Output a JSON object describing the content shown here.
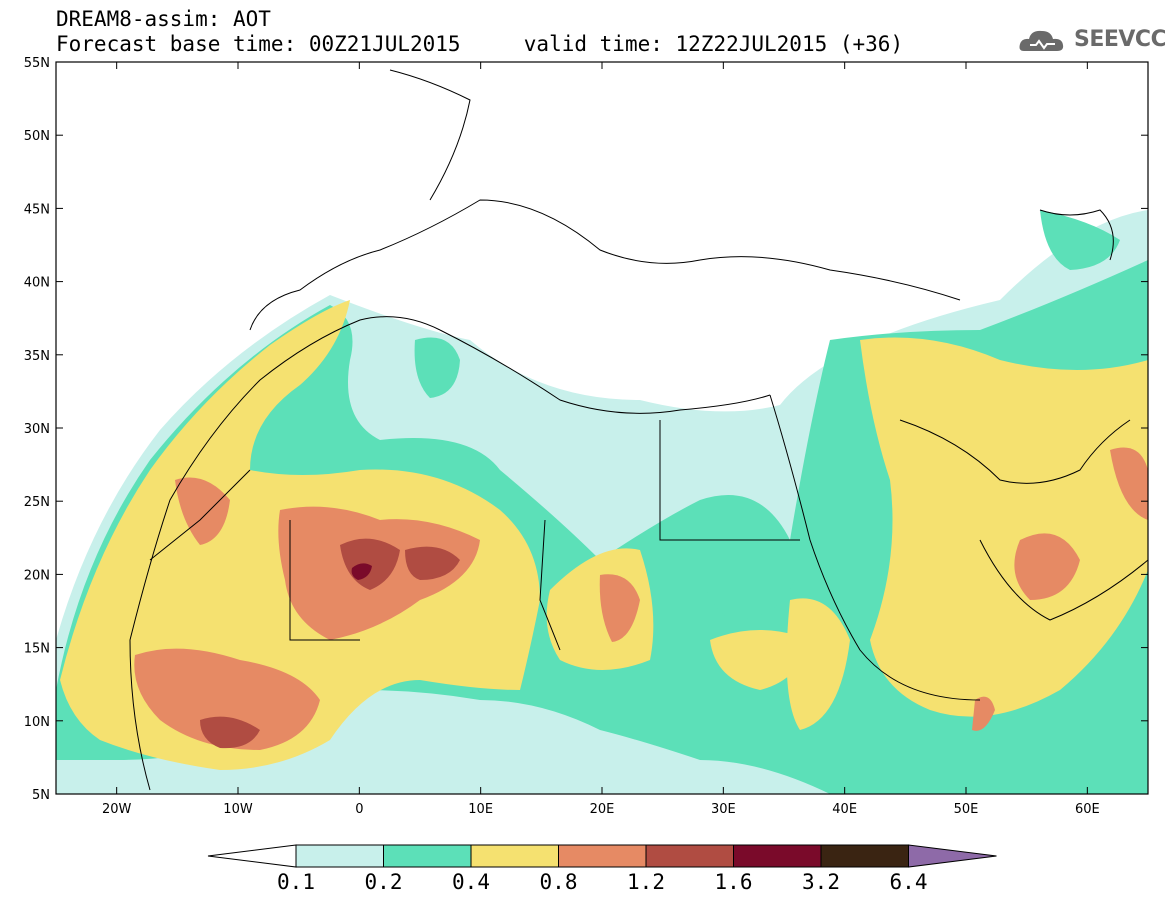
{
  "header": {
    "line1": "DREAM8-assim: AOT",
    "line2": "Forecast base time: 00Z21JUL2015     valid time: 12Z22JUL2015 (+36)"
  },
  "logo": {
    "text": "SEEVCCC",
    "icon": "cloud-icon"
  },
  "map": {
    "variable": "AOT",
    "lon_range": [
      -25,
      65
    ],
    "lat_range": [
      5,
      55
    ],
    "lat_ticks": [
      "55N",
      "50N",
      "45N",
      "40N",
      "35N",
      "30N",
      "25N",
      "20N",
      "15N",
      "10N",
      "5N"
    ],
    "lon_ticks": [
      "20W",
      "10W",
      "0",
      "10E",
      "20E",
      "30E",
      "40E",
      "50E",
      "60E"
    ]
  },
  "legend": {
    "thresholds": [
      "0.1",
      "0.2",
      "0.4",
      "0.8",
      "1.2",
      "1.6",
      "3.2",
      "6.4"
    ],
    "colors": [
      "#ffffff",
      "#c8f0eb",
      "#5ce0b8",
      "#f5e170",
      "#e68a64",
      "#b04c42",
      "#7a0a2a",
      "#3a2412",
      "#8e6aa8"
    ]
  }
}
